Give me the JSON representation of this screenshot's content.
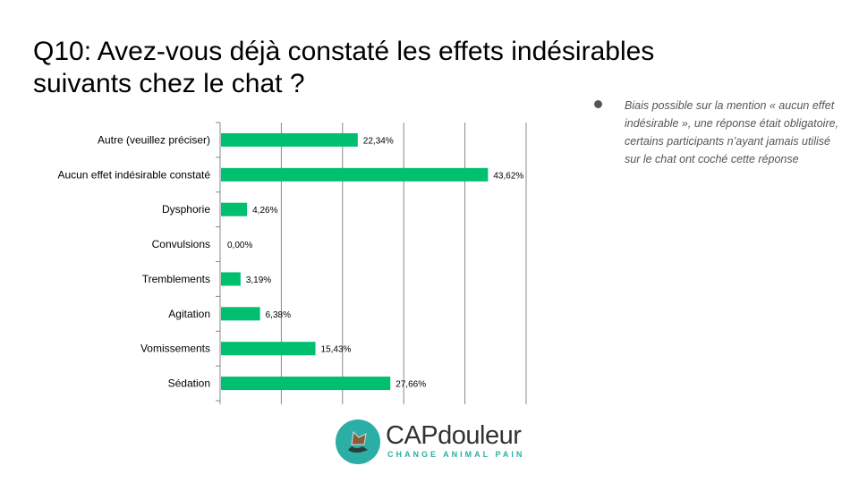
{
  "title": "Q10: Avez-vous déjà constaté les effets indésirables suivants chez le chat ?",
  "note": "Biais possible sur la mention « aucun effet indésirable », une réponse était obligatoire, certains participants n’ayant jamais utilisé sur le chat ont coché cette réponse",
  "logo": {
    "brand": "CAPdouleur",
    "tagline": "CHANGE ANIMAL PAIN"
  },
  "chart_data": {
    "type": "bar",
    "orientation": "horizontal",
    "categories": [
      "Autre (veuillez préciser)",
      "Aucun effet indésirable constaté",
      "Dysphorie",
      "Convulsions",
      "Tremblements",
      "Agitation",
      "Vomissements",
      "Sédation"
    ],
    "values": [
      22.34,
      43.62,
      4.26,
      0.0,
      3.19,
      6.38,
      15.43,
      27.66
    ],
    "data_labels": [
      "22,34%",
      "43,62%",
      "4,26%",
      "0,00%",
      "3,19%",
      "6,38%",
      "15,43%",
      "27,66%"
    ],
    "xlim": [
      0,
      50
    ],
    "grid": true,
    "bar_color": "#00bf6f",
    "title": "",
    "xlabel": "",
    "ylabel": ""
  }
}
